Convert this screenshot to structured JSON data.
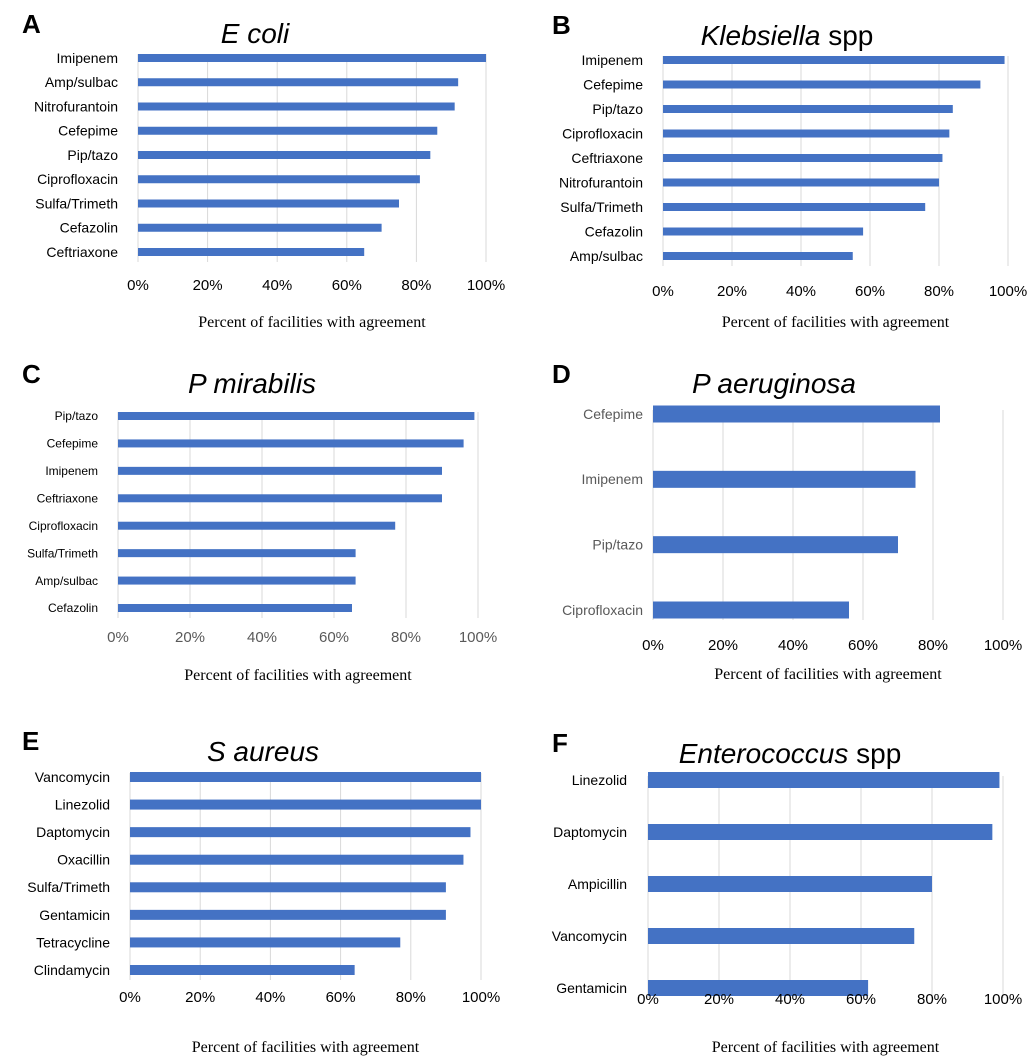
{
  "chart_data": [
    {
      "panel": "A",
      "type": "bar",
      "orientation": "horizontal",
      "title": "E coli",
      "title_italic": "E coli",
      "title_rest": "",
      "xlabel": "Percent of facilities with agreement",
      "xlim": [
        0,
        100
      ],
      "xticks": [
        "0%",
        "20%",
        "40%",
        "60%",
        "80%",
        "100%"
      ],
      "grid": true,
      "categories": [
        "Imipenem",
        "Amp/sulbac",
        "Nitrofurantoin",
        "Cefepime",
        "Pip/tazo",
        "Ciprofloxacin",
        "Sulfa/Trimeth",
        "Cefazolin",
        "Ceftriaxone"
      ],
      "values": [
        100,
        92,
        91,
        86,
        84,
        81,
        75,
        70,
        65
      ],
      "color": "#4472c4"
    },
    {
      "panel": "B",
      "type": "bar",
      "orientation": "horizontal",
      "title": "Klebsiella spp",
      "title_italic": "Klebsiella",
      "title_rest": " spp",
      "xlabel": "Percent of facilities with agreement",
      "xlim": [
        0,
        100
      ],
      "xticks": [
        "0%",
        "20%",
        "40%",
        "60%",
        "80%",
        "100%"
      ],
      "grid": true,
      "categories": [
        "Imipenem",
        "Cefepime",
        "Pip/tazo",
        "Ciprofloxacin",
        "Ceftriaxone",
        "Nitrofurantoin",
        "Sulfa/Trimeth",
        "Cefazolin",
        "Amp/sulbac"
      ],
      "values": [
        99,
        92,
        84,
        83,
        81,
        80,
        76,
        58,
        55
      ],
      "color": "#4472c4"
    },
    {
      "panel": "C",
      "type": "bar",
      "orientation": "horizontal",
      "title": "P mirabilis",
      "title_italic": "P mirabilis",
      "title_rest": "",
      "xlabel": "Percent of facilities with agreement",
      "xlim": [
        0,
        100
      ],
      "xticks": [
        "0%",
        "20%",
        "40%",
        "60%",
        "80%",
        "100%"
      ],
      "grid": true,
      "categories": [
        "Pip/tazo",
        "Cefepime",
        "Imipenem",
        "Ceftriaxone",
        "Ciprofloxacin",
        "Sulfa/Trimeth",
        "Amp/sulbac",
        "Cefazolin"
      ],
      "values": [
        99,
        96,
        90,
        90,
        77,
        66,
        66,
        65
      ],
      "color": "#4472c4"
    },
    {
      "panel": "D",
      "type": "bar",
      "orientation": "horizontal",
      "title": "P aeruginosa",
      "title_italic": "P aeruginosa",
      "title_rest": "",
      "xlabel": "Percent of facilities with agreement",
      "xlim": [
        0,
        100
      ],
      "xticks": [
        "0%",
        "20%",
        "40%",
        "60%",
        "80%",
        "100%"
      ],
      "grid": true,
      "categories": [
        "Cefepime",
        "Imipenem",
        "Pip/tazo",
        "Ciprofloxacin"
      ],
      "values": [
        82,
        75,
        70,
        56
      ],
      "color": "#4472c4"
    },
    {
      "panel": "E",
      "type": "bar",
      "orientation": "horizontal",
      "title": "S aureus",
      "title_italic": "S aureus",
      "title_rest": "",
      "xlabel": "Percent of facilities with agreement",
      "xlim": [
        0,
        100
      ],
      "xticks": [
        "0%",
        "20%",
        "40%",
        "60%",
        "80%",
        "100%"
      ],
      "grid": true,
      "categories": [
        "Vancomycin",
        "Linezolid",
        "Daptomycin",
        "Oxacillin",
        "Sulfa/Trimeth",
        "Gentamicin",
        "Tetracycline",
        "Clindamycin"
      ],
      "values": [
        100,
        100,
        97,
        95,
        90,
        90,
        77,
        64
      ],
      "color": "#4472c4"
    },
    {
      "panel": "F",
      "type": "bar",
      "orientation": "horizontal",
      "title": "Enterococcus spp",
      "title_italic": "Enterococcus",
      "title_rest": " spp",
      "xlabel": "Percent of facilities with agreement",
      "xlim": [
        0,
        100
      ],
      "xticks": [
        "0%",
        "20%",
        "40%",
        "60%",
        "80%",
        "100%"
      ],
      "grid": true,
      "categories": [
        "Linezolid",
        "Daptomycin",
        "Ampicillin",
        "Vancomycin",
        "Gentamicin"
      ],
      "values": [
        99,
        97,
        80,
        75,
        62
      ],
      "color": "#4472c4"
    }
  ]
}
